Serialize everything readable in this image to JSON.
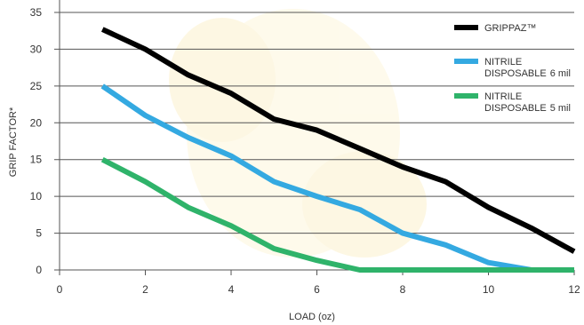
{
  "chart_data": {
    "type": "line",
    "title": "",
    "xlabel": "LOAD (oz)",
    "ylabel": "GRIP FACTOR*",
    "xlim": [
      0,
      12
    ],
    "ylim": [
      0,
      35
    ],
    "x_ticks": [
      0,
      2,
      4,
      6,
      8,
      10,
      12
    ],
    "y_ticks": [
      0,
      5,
      10,
      15,
      20,
      25,
      30,
      35
    ],
    "grid": "horizontal",
    "legend_position": "top-right",
    "series": [
      {
        "name": "GRIPPAZ™",
        "color": "#000000",
        "x": [
          1,
          2,
          3,
          4,
          5,
          6,
          7,
          8,
          9,
          10,
          11,
          12
        ],
        "values": [
          32.7,
          30,
          26.5,
          24,
          20.5,
          19,
          16.5,
          14,
          12,
          8.5,
          5.7,
          2.5
        ]
      },
      {
        "name": "NITRILE DISPOSABLE 6 mil",
        "name_lines": [
          "NITRILE",
          "DISPOSABLE"
        ],
        "name_suffix": "6 mil",
        "color": "#34a9e1",
        "x": [
          1,
          2,
          3,
          4,
          5,
          6,
          7,
          8,
          9,
          10,
          11,
          12
        ],
        "values": [
          25,
          21,
          18,
          15.5,
          12,
          10,
          8.2,
          5,
          3.4,
          1,
          0,
          0
        ]
      },
      {
        "name": "NITRILE DISPOSABLE 5 mil",
        "name_lines": [
          "NITRILE",
          "DISPOSABLE"
        ],
        "name_suffix": "5 mil",
        "color": "#2fb36a",
        "x": [
          1,
          2,
          3,
          4,
          5,
          6,
          7,
          8,
          9,
          10,
          11,
          12
        ],
        "values": [
          15,
          12,
          8.5,
          6,
          2.9,
          1.3,
          0,
          0,
          0,
          0,
          0,
          0
        ]
      }
    ]
  }
}
